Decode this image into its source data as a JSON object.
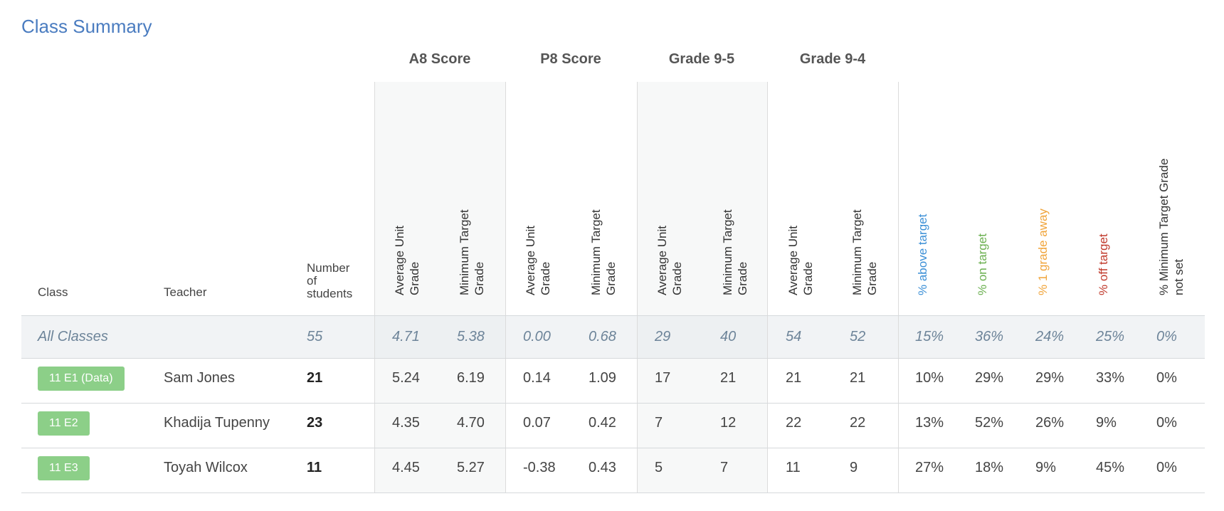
{
  "title": "Class Summary",
  "group_headers": [
    "A8 Score",
    "P8 Score",
    "Grade 9-5",
    "Grade 9-4"
  ],
  "headers": {
    "class": "Class",
    "teacher": "Teacher",
    "students": "Number\nof\nstudents",
    "avg_unit_grade": "Average Unit\nGrade",
    "min_target_grade": "Minimum Target\nGrade",
    "above": "% above target",
    "on": "% on target",
    "one_grade": "% 1 grade away",
    "off": "% off target",
    "not_set": "% Minimum Target Grade\nnot set"
  },
  "colors": {
    "title": "#4a7cc0",
    "above": "#3b8fd6",
    "on": "#6aaf4f",
    "one_grade": "#f0a43a",
    "off": "#c0392b",
    "badge": "#8ccf88"
  },
  "all_classes": {
    "label": "All Classes",
    "students": "55",
    "values": [
      "4.71",
      "5.38",
      "0.00",
      "0.68",
      "29",
      "40",
      "54",
      "52",
      "15%",
      "36%",
      "24%",
      "25%",
      "0%"
    ]
  },
  "rows": [
    {
      "class": "11 E1 (Data)",
      "teacher": "Sam Jones",
      "students": "21",
      "values": [
        "5.24",
        "6.19",
        "0.14",
        "1.09",
        "17",
        "21",
        "21",
        "21",
        "10%",
        "29%",
        "29%",
        "33%",
        "0%"
      ]
    },
    {
      "class": "11 E2",
      "teacher": "Khadija Tupenny",
      "students": "23",
      "values": [
        "4.35",
        "4.70",
        "0.07",
        "0.42",
        "7",
        "12",
        "22",
        "22",
        "13%",
        "52%",
        "26%",
        "9%",
        "0%"
      ]
    },
    {
      "class": "11 E3",
      "teacher": "Toyah Wilcox",
      "students": "11",
      "values": [
        "4.45",
        "5.27",
        "-0.38",
        "0.43",
        "5",
        "7",
        "11",
        "9",
        "27%",
        "18%",
        "9%",
        "45%",
        "0%"
      ]
    }
  ]
}
